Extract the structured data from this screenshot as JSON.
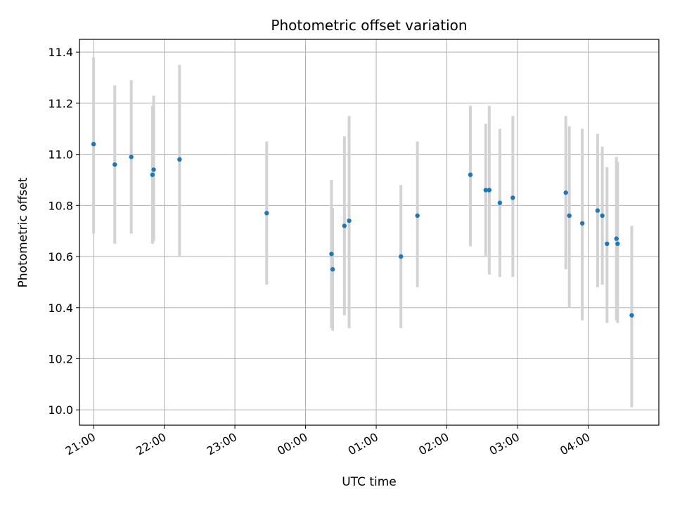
{
  "chart_data": {
    "type": "scatter",
    "title": "Photometric offset variation",
    "xlabel": "UTC time",
    "ylabel": "Photometric offset",
    "xlim": [
      "20:48",
      "05:00"
    ],
    "ylim": [
      9.94,
      11.45
    ],
    "x_ticks": [
      "21:00",
      "22:00",
      "23:00",
      "00:00",
      "01:00",
      "02:00",
      "03:00",
      "04:00"
    ],
    "y_ticks": [
      "10.0",
      "10.2",
      "10.4",
      "10.6",
      "10.8",
      "11.0",
      "11.2",
      "11.4"
    ],
    "grid": true,
    "colors": {
      "point": "#1f77b4",
      "errorbar": "#d3d3d3",
      "grid": "#b0b0b0"
    },
    "series": [
      {
        "points": [
          {
            "x": "21:00",
            "y": 11.04,
            "low": 10.69,
            "high": 11.38
          },
          {
            "x": "21:18",
            "y": 10.96,
            "low": 10.65,
            "high": 11.27
          },
          {
            "x": "21:32",
            "y": 10.99,
            "low": 10.69,
            "high": 11.29
          },
          {
            "x": "21:50",
            "y": 10.92,
            "low": 10.65,
            "high": 11.19
          },
          {
            "x": "21:51",
            "y": 10.94,
            "low": 10.66,
            "high": 11.23
          },
          {
            "x": "22:13",
            "y": 10.98,
            "low": 10.6,
            "high": 11.35
          },
          {
            "x": "23:27",
            "y": 10.77,
            "low": 10.49,
            "high": 11.05
          },
          {
            "x": "00:22",
            "y": 10.61,
            "low": 10.32,
            "high": 10.9
          },
          {
            "x": "00:23",
            "y": 10.55,
            "low": 10.31,
            "high": 10.79
          },
          {
            "x": "00:33",
            "y": 10.72,
            "low": 10.37,
            "high": 11.07
          },
          {
            "x": "00:37",
            "y": 10.74,
            "low": 10.32,
            "high": 11.15
          },
          {
            "x": "01:21",
            "y": 10.6,
            "low": 10.32,
            "high": 10.88
          },
          {
            "x": "01:35",
            "y": 10.76,
            "low": 10.48,
            "high": 11.05
          },
          {
            "x": "02:20",
            "y": 10.92,
            "low": 10.64,
            "high": 11.19
          },
          {
            "x": "02:33",
            "y": 10.86,
            "low": 10.6,
            "high": 11.12
          },
          {
            "x": "02:36",
            "y": 10.86,
            "low": 10.53,
            "high": 11.19
          },
          {
            "x": "02:45",
            "y": 10.81,
            "low": 10.52,
            "high": 11.1
          },
          {
            "x": "02:56",
            "y": 10.83,
            "low": 10.52,
            "high": 11.15
          },
          {
            "x": "03:41",
            "y": 10.85,
            "low": 10.55,
            "high": 11.15
          },
          {
            "x": "03:44",
            "y": 10.76,
            "low": 10.4,
            "high": 11.11
          },
          {
            "x": "03:55",
            "y": 10.73,
            "low": 10.35,
            "high": 11.1
          },
          {
            "x": "04:08",
            "y": 10.78,
            "low": 10.48,
            "high": 11.08
          },
          {
            "x": "04:12",
            "y": 10.76,
            "low": 10.49,
            "high": 11.03
          },
          {
            "x": "04:16",
            "y": 10.65,
            "low": 10.34,
            "high": 10.95
          },
          {
            "x": "04:24",
            "y": 10.67,
            "low": 10.35,
            "high": 10.99
          },
          {
            "x": "04:25",
            "y": 10.65,
            "low": 10.34,
            "high": 10.97
          },
          {
            "x": "04:37",
            "y": 10.37,
            "low": 10.01,
            "high": 10.72
          }
        ]
      }
    ]
  }
}
